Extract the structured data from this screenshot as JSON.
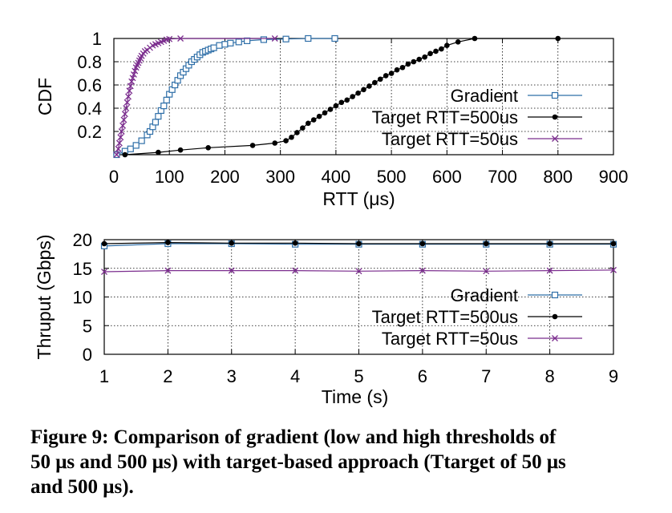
{
  "colors": {
    "gradient": "#2f6fa8",
    "t500": "#000000",
    "t50": "#7b2d8e"
  },
  "legend": [
    "Gradient",
    "Target RTT=500us",
    "Target RTT=50us"
  ],
  "chart_data": [
    {
      "type": "line",
      "name": "cdf",
      "xlabel": "RTT (μs)",
      "ylabel": "CDF",
      "xlim": [
        0,
        900
      ],
      "ylim": [
        0,
        1
      ],
      "xticks": [
        0,
        100,
        200,
        300,
        400,
        500,
        600,
        700,
        800,
        900
      ],
      "yticks": [
        0.2,
        0.4,
        0.6,
        0.8,
        1
      ],
      "ytick_labels": [
        "0.2",
        "0.4",
        "0.6",
        "0.8",
        "1"
      ],
      "grid": true,
      "legend_position": "right",
      "series": [
        {
          "name": "Gradient",
          "marker": "square",
          "x": [
            5,
            20,
            30,
            40,
            50,
            60,
            65,
            70,
            75,
            80,
            85,
            90,
            95,
            100,
            105,
            110,
            115,
            120,
            125,
            130,
            135,
            140,
            145,
            150,
            155,
            160,
            165,
            170,
            175,
            180,
            190,
            200,
            210,
            225,
            240,
            270,
            310,
            350,
            398
          ],
          "y": [
            0,
            0.03,
            0.05,
            0.08,
            0.12,
            0.17,
            0.2,
            0.24,
            0.28,
            0.33,
            0.38,
            0.42,
            0.47,
            0.52,
            0.56,
            0.6,
            0.64,
            0.68,
            0.71,
            0.74,
            0.77,
            0.8,
            0.82,
            0.84,
            0.86,
            0.88,
            0.89,
            0.9,
            0.91,
            0.92,
            0.94,
            0.95,
            0.96,
            0.97,
            0.98,
            0.99,
            0.995,
            1,
            1
          ]
        },
        {
          "name": "Target RTT=500us",
          "marker": "circle",
          "x": [
            20,
            80,
            120,
            170,
            250,
            290,
            310,
            320,
            330,
            340,
            350,
            360,
            370,
            380,
            390,
            400,
            410,
            420,
            430,
            440,
            450,
            460,
            470,
            480,
            490,
            500,
            510,
            520,
            530,
            540,
            550,
            560,
            570,
            580,
            590,
            600,
            620,
            650,
            800
          ],
          "y": [
            0,
            0.02,
            0.04,
            0.06,
            0.08,
            0.1,
            0.12,
            0.15,
            0.19,
            0.23,
            0.27,
            0.3,
            0.33,
            0.36,
            0.39,
            0.42,
            0.45,
            0.47,
            0.5,
            0.53,
            0.56,
            0.59,
            0.62,
            0.65,
            0.68,
            0.7,
            0.73,
            0.75,
            0.78,
            0.8,
            0.82,
            0.84,
            0.87,
            0.89,
            0.91,
            0.94,
            0.97,
            1,
            1
          ]
        },
        {
          "name": "Target RTT=50us",
          "marker": "x",
          "x": [
            5,
            8,
            10,
            12,
            14,
            16,
            18,
            20,
            22,
            24,
            26,
            28,
            30,
            32,
            34,
            36,
            38,
            40,
            42,
            44,
            46,
            48,
            50,
            53,
            56,
            60,
            65,
            70,
            75,
            80,
            85,
            90,
            95,
            100,
            120,
            290
          ],
          "y": [
            0,
            0.05,
            0.1,
            0.15,
            0.2,
            0.25,
            0.3,
            0.35,
            0.4,
            0.45,
            0.5,
            0.55,
            0.59,
            0.63,
            0.66,
            0.69,
            0.72,
            0.75,
            0.77,
            0.79,
            0.81,
            0.83,
            0.85,
            0.87,
            0.89,
            0.9,
            0.92,
            0.94,
            0.95,
            0.96,
            0.97,
            0.98,
            0.99,
            0.995,
            1,
            1
          ]
        }
      ]
    },
    {
      "type": "line",
      "name": "thruput",
      "xlabel": "Time (s)",
      "ylabel": "Thruput (Gbps)",
      "xlim": [
        1,
        9
      ],
      "ylim": [
        0,
        20
      ],
      "xticks": [
        1,
        2,
        3,
        4,
        5,
        6,
        7,
        8,
        9
      ],
      "yticks": [
        0,
        5,
        10,
        15,
        20
      ],
      "grid": true,
      "legend_position": "bottom-right",
      "series": [
        {
          "name": "Gradient",
          "marker": "square",
          "x": [
            1,
            2,
            3,
            4,
            5,
            6,
            7,
            8,
            9
          ],
          "y": [
            18.9,
            19.3,
            19.3,
            19.2,
            19.2,
            19.2,
            19.2,
            19.2,
            19.2
          ]
        },
        {
          "name": "Target RTT=500us",
          "marker": "circle",
          "x": [
            1,
            2,
            3,
            4,
            5,
            6,
            7,
            8,
            9
          ],
          "y": [
            19.3,
            19.5,
            19.4,
            19.4,
            19.3,
            19.3,
            19.3,
            19.3,
            19.3
          ]
        },
        {
          "name": "Target RTT=50us",
          "marker": "x",
          "x": [
            1,
            2,
            3,
            4,
            5,
            6,
            7,
            8,
            9
          ],
          "y": [
            14.4,
            14.6,
            14.6,
            14.6,
            14.5,
            14.6,
            14.5,
            14.6,
            14.7
          ]
        }
      ]
    }
  ],
  "caption": {
    "lines": [
      "Figure 9: Comparison of gradient (low and high thresholds of",
      "50 μs and 500 μs) with target-based approach (Ttarget of 50 μs",
      "and 500 μs)."
    ]
  }
}
